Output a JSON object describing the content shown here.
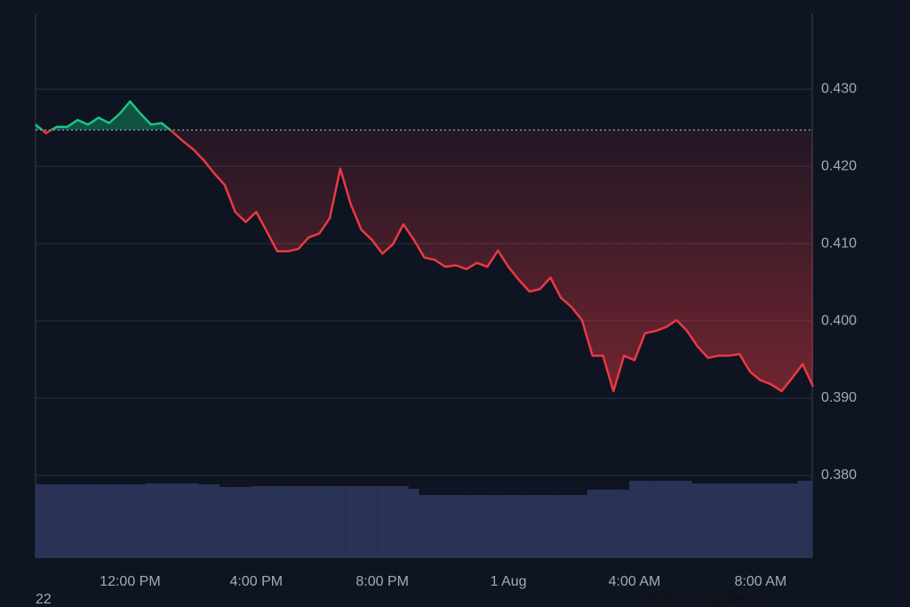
{
  "chart_data": {
    "type": "line",
    "categories": [
      null,
      null,
      null,
      null,
      null,
      null,
      null,
      null,
      null,
      "12:00 PM",
      null,
      null,
      null,
      null,
      null,
      null,
      null,
      null,
      null,
      null,
      null,
      "4:00 PM",
      null,
      null,
      null,
      null,
      null,
      null,
      null,
      null,
      null,
      null,
      null,
      "8:00 PM",
      null,
      null,
      null,
      null,
      null,
      null,
      null,
      null,
      null,
      null,
      null,
      "1 Aug",
      null,
      null,
      null,
      null,
      null,
      null,
      null,
      null,
      null,
      null,
      null,
      "4:00 AM",
      null,
      null,
      null,
      null,
      null,
      null,
      null,
      null,
      null,
      null,
      null,
      "8:00 AM",
      null,
      null,
      null,
      null,
      null
    ],
    "series": [
      {
        "name": "price",
        "up_color": "#16c784",
        "down_color": "#ea3943",
        "values": [
          0.4254,
          0.4243,
          0.4251,
          0.4251,
          0.426,
          0.4254,
          0.4263,
          0.4256,
          0.4268,
          0.4284,
          0.4268,
          0.4254,
          0.4256,
          0.4245,
          0.4233,
          0.4222,
          0.4208,
          0.4191,
          0.4176,
          0.4141,
          0.4128,
          0.4141,
          0.4116,
          0.409,
          0.409,
          0.4093,
          0.4108,
          0.4113,
          0.4133,
          0.4197,
          0.4151,
          0.4118,
          0.4105,
          0.4087,
          0.4099,
          0.4125,
          0.4105,
          0.4082,
          0.4079,
          0.407,
          0.4072,
          0.4067,
          0.4075,
          0.407,
          0.4091,
          0.407,
          0.4053,
          0.4038,
          0.4041,
          0.4056,
          0.403,
          0.4018,
          0.4001,
          0.3955,
          0.3955,
          0.3909,
          0.3955,
          0.3949,
          0.3984,
          0.3987,
          0.3992,
          0.4001,
          0.3987,
          0.3967,
          0.3952,
          0.3955,
          0.3955,
          0.3957,
          0.3934,
          0.3923,
          0.3918,
          0.3909,
          0.3926,
          0.3944,
          0.3915
        ]
      },
      {
        "name": "volume",
        "color": "#2a3355",
        "values": [
          83,
          83,
          83,
          83,
          83,
          83,
          83,
          83,
          83,
          83,
          83,
          84,
          84,
          84,
          84,
          84,
          83,
          83,
          80,
          80,
          80,
          81,
          81,
          81,
          81,
          81,
          81,
          81,
          81,
          81,
          81,
          81,
          81,
          81,
          81,
          81,
          78,
          71,
          71,
          71,
          71,
          71,
          71,
          71,
          71,
          71,
          71,
          71,
          71,
          71,
          71,
          71,
          71,
          77,
          77,
          77,
          77,
          87,
          87,
          87,
          87,
          87,
          87,
          84,
          84,
          84,
          84,
          84,
          84,
          84,
          84,
          84,
          84,
          87,
          87
        ]
      }
    ],
    "baseline": 0.4247,
    "ylim": [
      0.3693,
      0.4398
    ],
    "yticks": [
      {
        "value": 0.38,
        "label": "0.380"
      },
      {
        "value": 0.39,
        "label": "0.390"
      },
      {
        "value": 0.4,
        "label": "0.400"
      },
      {
        "value": 0.41,
        "label": "0.410"
      },
      {
        "value": 0.42,
        "label": "0.420"
      },
      {
        "value": 0.43,
        "label": "0.430"
      }
    ],
    "volume_lim": [
      0,
      100
    ],
    "grid": true,
    "footer_left": "22",
    "news": "Stellar integrates S..."
  }
}
